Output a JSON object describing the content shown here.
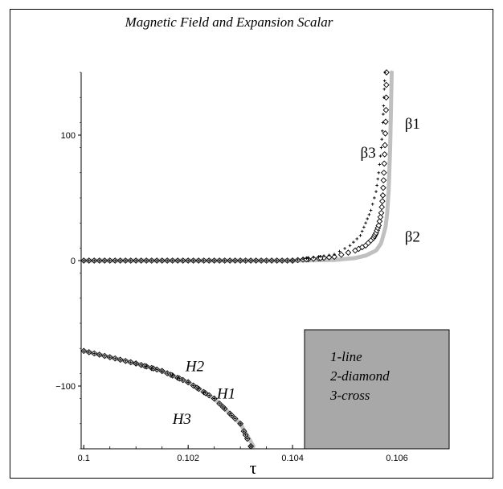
{
  "chart_data": {
    "type": "line",
    "title": "Magnetic Field and Expansion Scalar",
    "xlabel": "τ",
    "ylabel": "",
    "xlim": [
      0.09995,
      0.107
    ],
    "ylim": [
      -150,
      150
    ],
    "x_ticks": [
      "0.1",
      "0.102",
      "0.104",
      "0.106"
    ],
    "y_ticks": [
      "100",
      "0",
      "−100"
    ],
    "grid": false,
    "legend": {
      "placement": "bottom-right",
      "entries": [
        "1-line",
        "2-diamond",
        "3-cross"
      ]
    },
    "annotations": [
      {
        "text": "β1",
        "x": 0.10615,
        "y": 105
      },
      {
        "text": "β2",
        "x": 0.10615,
        "y": 15
      },
      {
        "text": "β3",
        "x": 0.1053,
        "y": 82
      },
      {
        "text": "H2",
        "x": 0.10195,
        "y": -88
      },
      {
        "text": "H1",
        "x": 0.10255,
        "y": -110
      },
      {
        "text": "H3",
        "x": 0.1017,
        "y": -130
      }
    ],
    "series": [
      {
        "name": "β1",
        "style": "line",
        "x": [
          0.1,
          0.102,
          0.104,
          0.1048,
          0.1052,
          0.1054,
          0.1056,
          0.1057,
          0.1058,
          0.10584,
          0.10587,
          0.10589,
          0.1059
        ],
        "y": [
          0,
          0,
          0,
          0.5,
          2,
          4,
          8,
          14,
          30,
          55,
          90,
          125,
          150
        ]
      },
      {
        "name": "β2",
        "style": "diamond",
        "x": [
          0.1,
          0.102,
          0.104,
          0.1048,
          0.1052,
          0.1054,
          0.10555,
          0.1056,
          0.10565,
          0.1057,
          0.10573,
          0.10575,
          0.10577,
          0.10579,
          0.1058
        ],
        "y": [
          0,
          0,
          0,
          3,
          8,
          12,
          18,
          22,
          28,
          38,
          52,
          70,
          92,
          120,
          150
        ]
      },
      {
        "name": "β3",
        "style": "cross",
        "x": [
          0.1,
          0.102,
          0.104,
          0.1048,
          0.1051,
          0.1053,
          0.1054,
          0.1055,
          0.1056,
          0.10565,
          0.1057,
          0.10573,
          0.10575,
          0.10577
        ],
        "y": [
          0,
          0,
          0,
          5,
          12,
          20,
          30,
          40,
          55,
          70,
          90,
          110,
          130,
          150
        ]
      },
      {
        "name": "H1",
        "style": "line",
        "x": [
          0.1,
          0.1005,
          0.101,
          0.1015,
          0.102,
          0.1025,
          0.103,
          0.10325
        ],
        "y": [
          -72,
          -77,
          -82,
          -88,
          -97,
          -110,
          -130,
          -148
        ]
      },
      {
        "name": "H2",
        "style": "diamond",
        "x": [
          0.1,
          0.1005,
          0.101,
          0.1015,
          0.102,
          0.1025,
          0.103,
          0.1032
        ],
        "y": [
          -72,
          -77,
          -82,
          -88,
          -97,
          -110,
          -130,
          -148
        ]
      },
      {
        "name": "H3",
        "style": "cross",
        "x": [
          0.1,
          0.1005,
          0.101,
          0.1015,
          0.102,
          0.1025,
          0.103,
          0.1032
        ],
        "y": [
          -72,
          -77,
          -82,
          -88,
          -97,
          -110,
          -130,
          -148
        ]
      }
    ],
    "colors": {
      "line": "#c0c0c0",
      "legend_bg": "#a8a8a8",
      "markers": "#000000"
    }
  }
}
